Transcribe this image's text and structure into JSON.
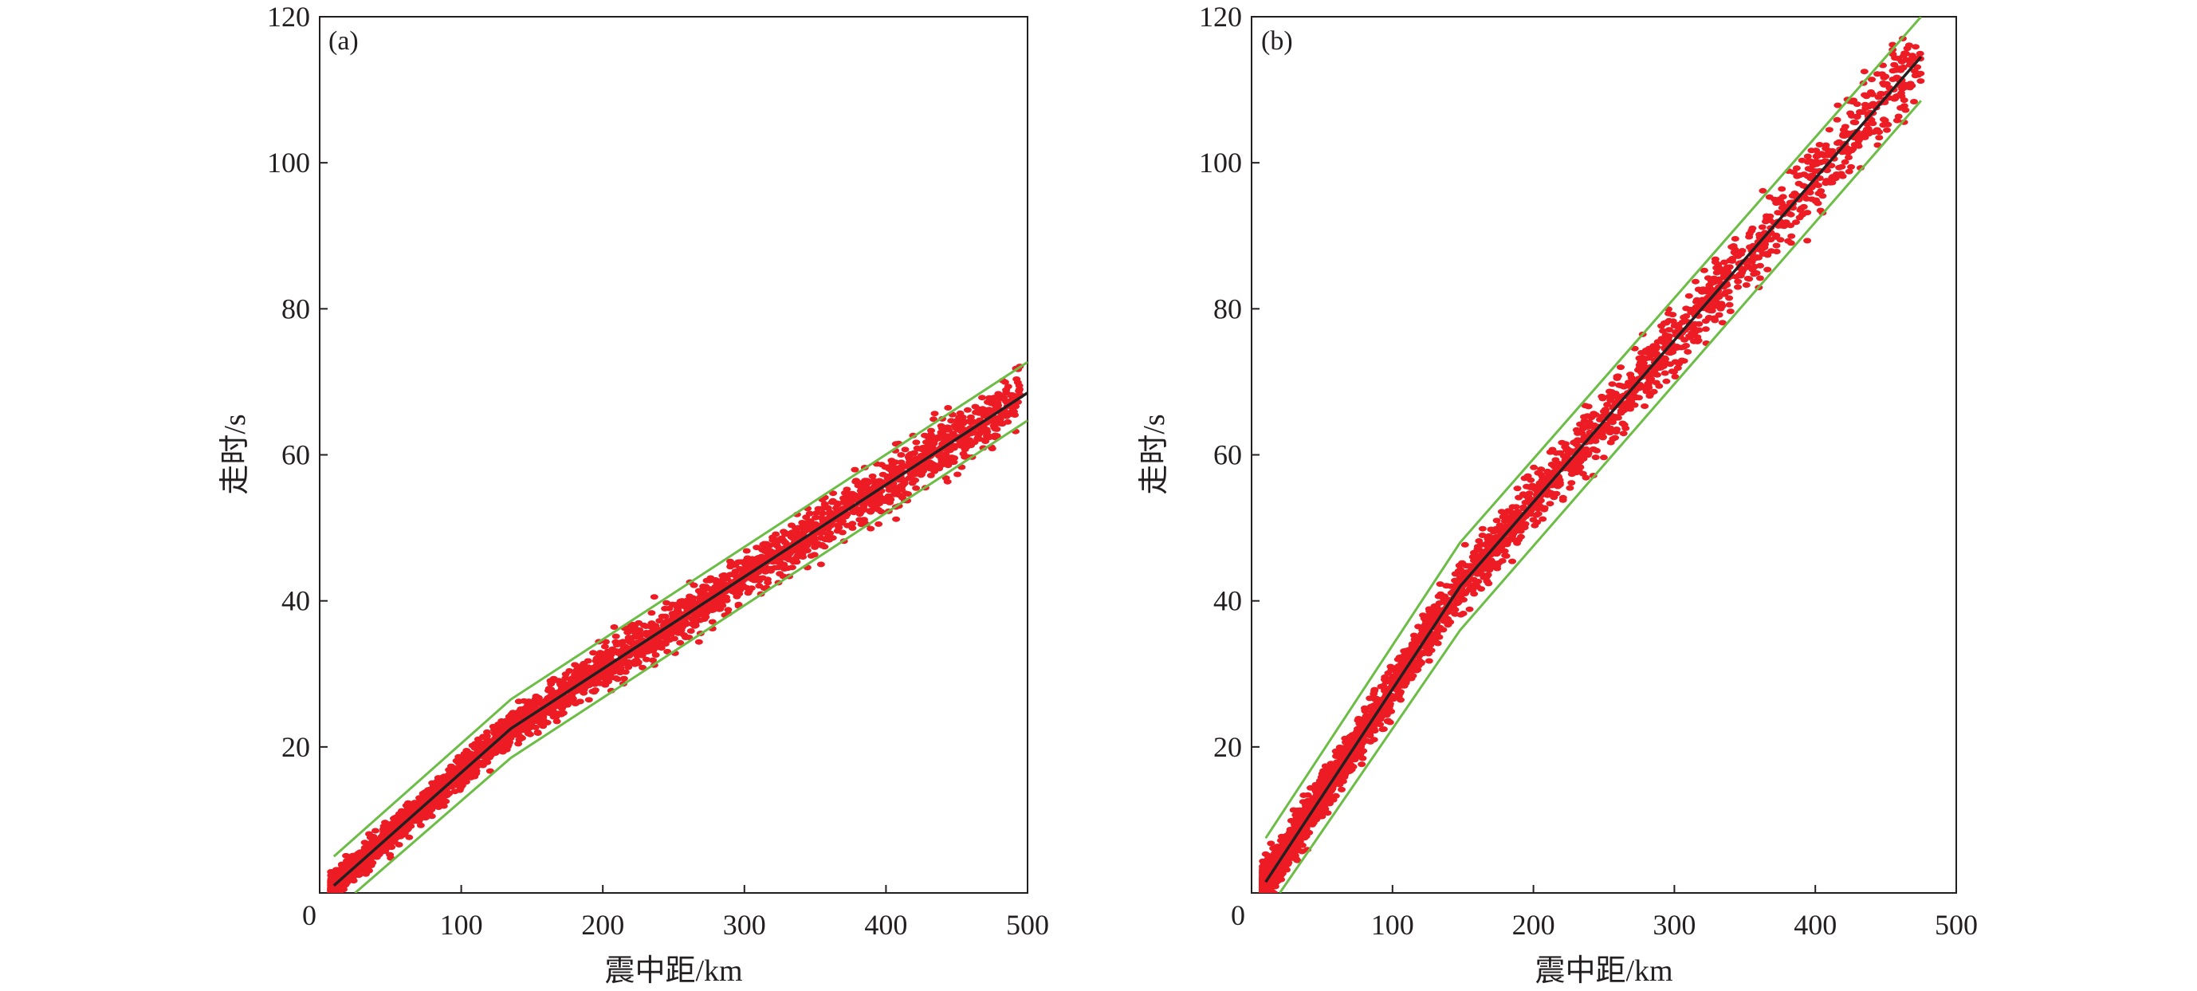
{
  "chart_data": [
    {
      "type": "scatter",
      "panel_label": "(a)",
      "xlabel": "震中距/km",
      "ylabel": "走时/s",
      "xlim": [
        0,
        500
      ],
      "ylim": [
        0,
        120
      ],
      "xticks": [
        100,
        200,
        300,
        400,
        500
      ],
      "yticks": [
        20,
        40,
        60,
        80,
        100,
        120
      ],
      "origin_label": "0",
      "grid": false,
      "series": [
        {
          "name": "fit",
          "kind": "line",
          "color": "#231f20",
          "x": [
            10,
            135,
            500
          ],
          "y": [
            1,
            22.5,
            68.5
          ]
        },
        {
          "name": "upper-bound",
          "kind": "line",
          "color": "#6cbd45",
          "x": [
            10,
            135,
            500
          ],
          "y": [
            5,
            26.5,
            72.7
          ]
        },
        {
          "name": "lower-bound",
          "kind": "line",
          "color": "#6cbd45",
          "x": [
            25,
            135,
            500
          ],
          "y": [
            0,
            18.5,
            64.7
          ]
        },
        {
          "name": "observations",
          "kind": "scatter",
          "color": "#ed1c24",
          "count": 3500,
          "x_range": [
            8,
            495
          ],
          "density_exponent": 1.7,
          "noise_sd_s": 1.0
        }
      ]
    },
    {
      "type": "scatter",
      "panel_label": "(b)",
      "xlabel": "震中距/km",
      "ylabel": "走时/s",
      "xlim": [
        0,
        500
      ],
      "ylim": [
        0,
        120
      ],
      "xticks": [
        100,
        200,
        300,
        400,
        500
      ],
      "yticks": [
        20,
        40,
        60,
        80,
        100,
        120
      ],
      "origin_label": "0",
      "grid": false,
      "series": [
        {
          "name": "fit",
          "kind": "line",
          "color": "#231f20",
          "x": [
            10,
            148,
            475
          ],
          "y": [
            1.5,
            42,
            114.5
          ]
        },
        {
          "name": "upper-bound",
          "kind": "line",
          "color": "#6cbd45",
          "x": [
            10,
            148,
            475
          ],
          "y": [
            7.5,
            48,
            120
          ]
        },
        {
          "name": "lower-bound",
          "kind": "line",
          "color": "#6cbd45",
          "x": [
            20,
            148,
            475
          ],
          "y": [
            0,
            36,
            108.5
          ]
        },
        {
          "name": "observations",
          "kind": "scatter",
          "color": "#ed1c24",
          "count": 3500,
          "x_range": [
            8,
            475
          ],
          "density_exponent": 2.6,
          "noise_sd_s": 1.4
        }
      ]
    }
  ]
}
